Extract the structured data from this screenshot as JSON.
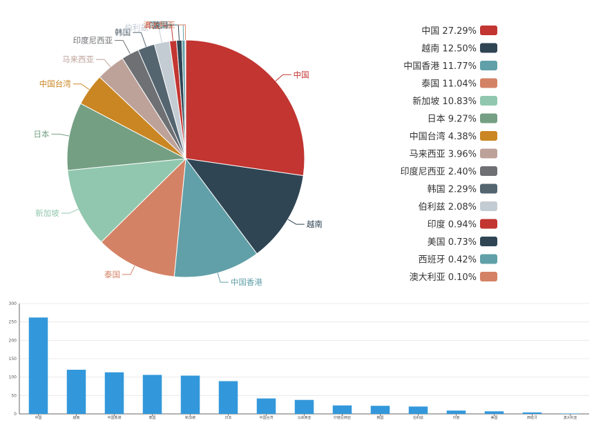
{
  "chart_data": [
    {
      "type": "pie",
      "categories": [
        "中国",
        "越南",
        "中国香港",
        "泰国",
        "新加坡",
        "日本",
        "中国台湾",
        "马来西亚",
        "印度尼西亚",
        "韩国",
        "伯利兹",
        "印度",
        "美国",
        "西班牙",
        "澳大利亚"
      ],
      "values": [
        27.29,
        12.5,
        11.77,
        11.04,
        10.83,
        9.27,
        4.38,
        3.96,
        2.4,
        2.29,
        2.08,
        0.94,
        0.73,
        0.42,
        0.1
      ],
      "value_labels": [
        "27.29%",
        "12.50%",
        "11.77%",
        "11.04%",
        "10.83%",
        "9.27%",
        "4.38%",
        "3.96%",
        "2.40%",
        "2.29%",
        "2.08%",
        "0.94%",
        "0.73%",
        "0.42%",
        "0.10%"
      ],
      "colors": [
        "#c23531",
        "#2f4554",
        "#61a0a8",
        "#d48265",
        "#91c7ae",
        "#749f83",
        "#ca8622",
        "#bda29a",
        "#6e7074",
        "#546570",
        "#c4ccd3",
        "#c23531",
        "#2f4554",
        "#61a0a8",
        "#d48265"
      ],
      "legend_position": "right"
    },
    {
      "type": "bar",
      "categories": [
        "中国",
        "越南",
        "中国香港",
        "泰国",
        "新加坡",
        "日本",
        "中国台湾",
        "马来西亚",
        "印度尼西亚",
        "韩国",
        "伯利兹",
        "印度",
        "美国",
        "西班牙",
        "澳大利亚"
      ],
      "values": [
        262,
        120,
        113,
        106,
        104,
        89,
        42,
        38,
        23,
        22,
        20,
        9,
        7,
        4,
        1
      ],
      "ylim": [
        0,
        300
      ],
      "yticks": [
        0,
        50,
        100,
        150,
        200,
        250,
        300
      ],
      "grid": true,
      "color": "#3398DB"
    }
  ]
}
